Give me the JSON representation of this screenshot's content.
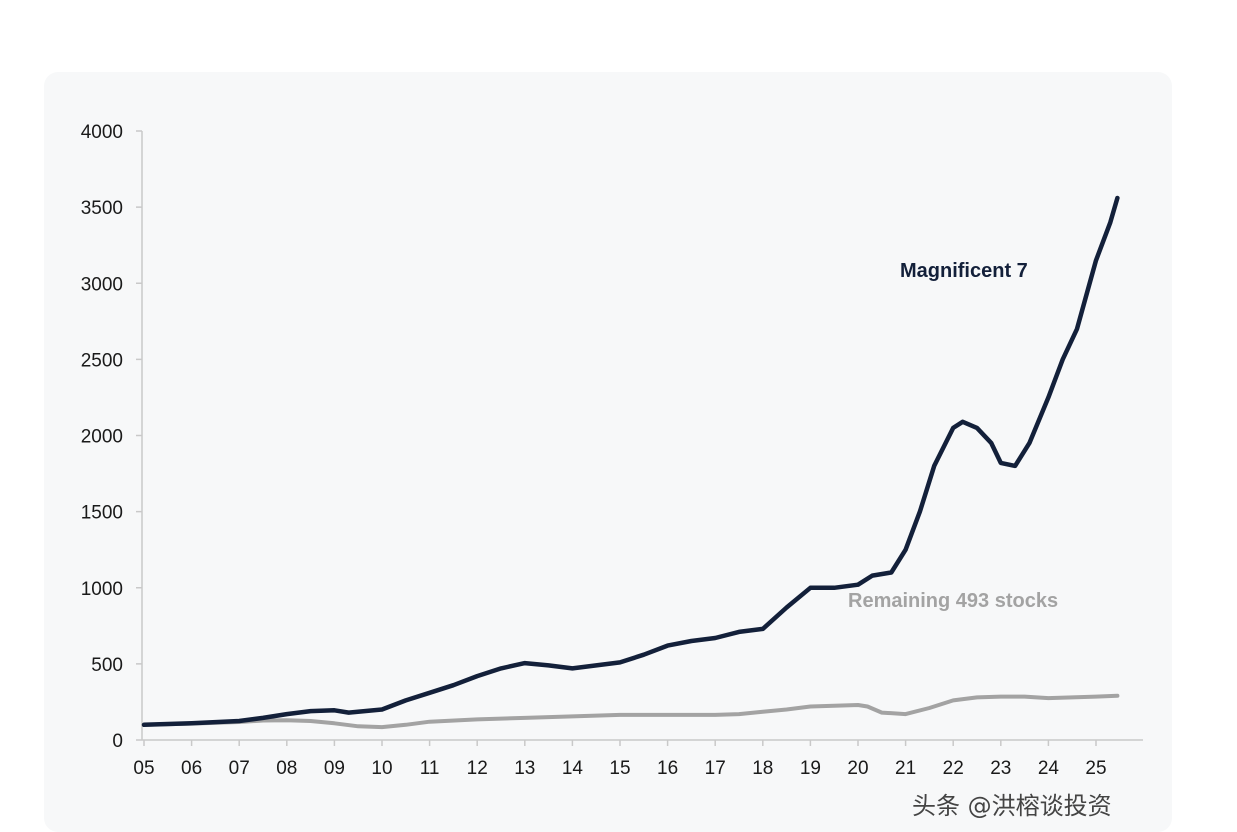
{
  "chart_data": {
    "type": "line",
    "title": "",
    "xlabel": "",
    "ylabel": "",
    "ylim": [
      0,
      4000
    ],
    "yticks": [
      "0",
      "500",
      "1000",
      "1500",
      "2000",
      "2500",
      "3000",
      "3500",
      "4000"
    ],
    "xticks": [
      "05",
      "06",
      "07",
      "08",
      "09",
      "10",
      "11",
      "12",
      "13",
      "14",
      "15",
      "16",
      "17",
      "18",
      "19",
      "20",
      "21",
      "22",
      "23",
      "24",
      "25"
    ],
    "grid": false,
    "series": [
      {
        "name": "Magnificent 7",
        "color": "#13203a",
        "x": [
          2005.0,
          2006.0,
          2007.0,
          2007.5,
          2008.0,
          2008.5,
          2009.0,
          2009.3,
          2010.0,
          2010.5,
          2011.0,
          2011.5,
          2012.0,
          2012.5,
          2013.0,
          2013.5,
          2014.0,
          2014.5,
          2015.0,
          2015.5,
          2016.0,
          2016.5,
          2017.0,
          2017.5,
          2018.0,
          2018.5,
          2019.0,
          2019.5,
          2020.0,
          2020.3,
          2020.7,
          2021.0,
          2021.3,
          2021.6,
          2022.0,
          2022.2,
          2022.5,
          2022.8,
          2023.0,
          2023.3,
          2023.6,
          2024.0,
          2024.3,
          2024.6,
          2025.0,
          2025.3,
          2025.45
        ],
        "values": [
          100,
          110,
          125,
          145,
          170,
          190,
          195,
          180,
          200,
          260,
          310,
          360,
          420,
          470,
          505,
          490,
          470,
          490,
          510,
          560,
          620,
          650,
          670,
          710,
          730,
          870,
          1000,
          1000,
          1020,
          1080,
          1100,
          1250,
          1500,
          1800,
          2050,
          2090,
          2050,
          1950,
          1820,
          1800,
          1950,
          2250,
          2500,
          2700,
          3150,
          3400,
          3560
        ]
      },
      {
        "name": "Remaining 493 stocks",
        "color": "#a3a3a3",
        "x": [
          2005.0,
          2006.0,
          2007.0,
          2007.5,
          2008.0,
          2008.5,
          2009.0,
          2009.5,
          2010.0,
          2010.5,
          2011.0,
          2012.0,
          2013.0,
          2014.0,
          2015.0,
          2016.0,
          2017.0,
          2017.5,
          2018.0,
          2018.5,
          2019.0,
          2019.5,
          2020.0,
          2020.2,
          2020.5,
          2021.0,
          2021.5,
          2022.0,
          2022.5,
          2023.0,
          2023.5,
          2024.0,
          2024.5,
          2025.0,
          2025.45
        ],
        "values": [
          100,
          108,
          118,
          128,
          130,
          125,
          110,
          90,
          85,
          100,
          120,
          135,
          145,
          155,
          165,
          165,
          165,
          170,
          185,
          200,
          220,
          225,
          230,
          220,
          180,
          170,
          210,
          260,
          280,
          285,
          285,
          275,
          280,
          285,
          290
        ]
      }
    ]
  },
  "labels": {
    "mag7": "Magnificent 7",
    "remaining": "Remaining 493 stocks"
  },
  "watermark": "头条 @洪榕谈投资"
}
